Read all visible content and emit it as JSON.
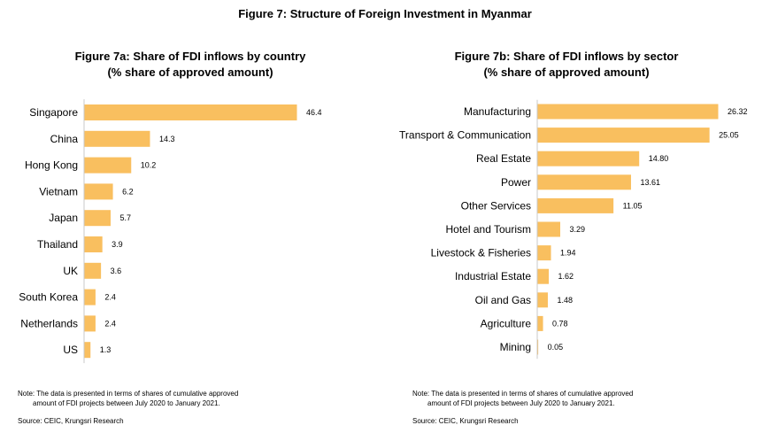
{
  "title": "Figure 7: Structure of Foreign Investment in Myanmar",
  "accent_color": "#F9BF5F",
  "chart_data": [
    {
      "type": "bar",
      "orientation": "horizontal",
      "title_line1": "Figure 7a: Share of FDI inflows by country",
      "title_line2": "(% share of approved amount)",
      "categories": [
        "Singapore",
        "China",
        "Hong Kong",
        "Vietnam",
        "Japan",
        "Thailand",
        "UK",
        "South Korea",
        "Netherlands",
        "US"
      ],
      "values": [
        46.4,
        14.3,
        10.2,
        6.2,
        5.7,
        3.9,
        3.6,
        2.4,
        2.4,
        1.3
      ],
      "value_labels": [
        "46.4",
        "14.3",
        "10.2",
        "6.2",
        "5.7",
        "3.9",
        "3.6",
        "2.4",
        "2.4",
        "1.3"
      ],
      "xlim": [
        0,
        46.4
      ],
      "grid": false,
      "legend": "none"
    },
    {
      "type": "bar",
      "orientation": "horizontal",
      "title_line1": "Figure 7b: Share of FDI inflows by sector",
      "title_line2": "(% share of approved amount)",
      "categories": [
        "Manufacturing",
        "Transport & Communication",
        "Real Estate",
        "Power",
        "Other Services",
        "Hotel and Tourism",
        "Livestock & Fisheries",
        "Industrial Estate",
        "Oil and Gas",
        "Agriculture",
        "Mining"
      ],
      "values": [
        26.32,
        25.05,
        14.8,
        13.61,
        11.05,
        3.29,
        1.94,
        1.62,
        1.48,
        0.78,
        0.05
      ],
      "value_labels": [
        "26.32",
        "25.05",
        "14.80",
        "13.61",
        "11.05",
        "3.29",
        "1.94",
        "1.62",
        "1.48",
        "0.78",
        "0.05"
      ],
      "xlim": [
        0,
        26.32
      ],
      "grid": false,
      "legend": "none"
    }
  ],
  "notes": [
    {
      "note_line1": "Note: The data is presented in terms of shares of cumulative approved",
      "note_line2": "amount of FDI projects between July 2020 to January 2021.",
      "source": "Source: CEIC, Krungsri Research"
    },
    {
      "note_line1": "Note: The data is presented in terms of shares of cumulative approved",
      "note_line2": "amount of FDI projects between July 2020 to January 2021.",
      "source": "Source: CEIC, Krungsri Research"
    }
  ]
}
